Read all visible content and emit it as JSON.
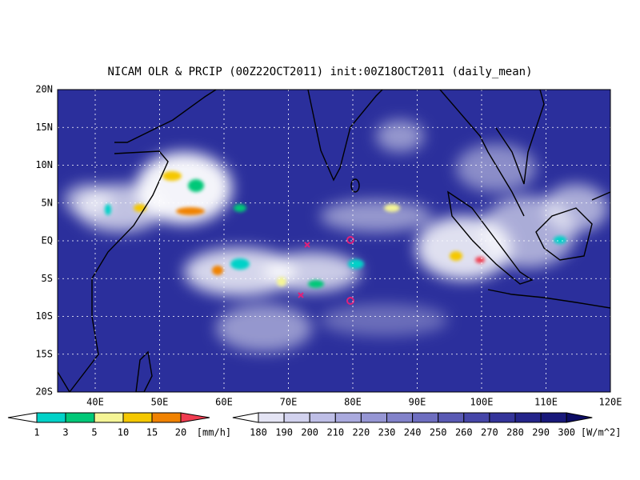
{
  "title": "NICAM OLR & PRCIP (00Z22OCT2011) init:00Z18OCT2011 (daily_mean)",
  "lat_labels": [
    "20N",
    "15N",
    "10N",
    "5N",
    "EQ",
    "5S",
    "10S",
    "15S",
    "20S"
  ],
  "lon_labels": [
    "40E",
    "50E",
    "60E",
    "70E",
    "80E",
    "90E",
    "100E",
    "110E",
    "120E"
  ],
  "precip_colorbar": {
    "labels": [
      1,
      3,
      5,
      10,
      15,
      20
    ],
    "unit": "[mm/h]",
    "colors": [
      "#ffffff",
      "#00d2c8",
      "#00c878",
      "#f5f596",
      "#f5c800",
      "#f08200",
      "#f03c50"
    ]
  },
  "olr_colorbar": {
    "labels": [
      180,
      190,
      200,
      210,
      220,
      230,
      240,
      250,
      260,
      270,
      280,
      290,
      300
    ],
    "unit": "[W/m^2]",
    "colors": [
      "#ffffff",
      "#e4e4f4",
      "#d2d2ee",
      "#bebee6",
      "#aaaade",
      "#9696d4",
      "#8282ca",
      "#6e6ec0",
      "#5a5ab4",
      "#4646a8",
      "#34349a",
      "#24248a",
      "#18187a",
      "#0c0c64"
    ]
  }
}
